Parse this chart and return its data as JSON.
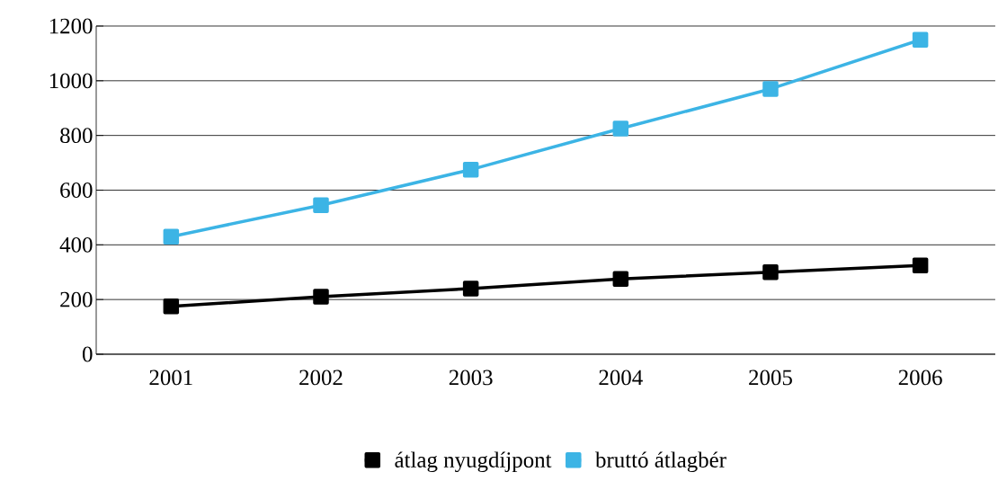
{
  "chart_data": {
    "type": "line",
    "categories": [
      "2001",
      "2002",
      "2003",
      "2004",
      "2005",
      "2006"
    ],
    "series": [
      {
        "name": "átlag nyugdíjpont",
        "color": "#000000",
        "values": [
          175,
          210,
          240,
          275,
          300,
          325
        ]
      },
      {
        "name": "bruttó átlagbér",
        "color": "#3cb4e5",
        "values": [
          430,
          545,
          675,
          825,
          970,
          1150
        ]
      }
    ],
    "ylim": [
      0,
      1200
    ],
    "yticks": [
      0,
      200,
      400,
      600,
      800,
      1000,
      1200
    ],
    "grid": "y",
    "legend": "bottom",
    "marker": "square",
    "line_style": "solid"
  }
}
